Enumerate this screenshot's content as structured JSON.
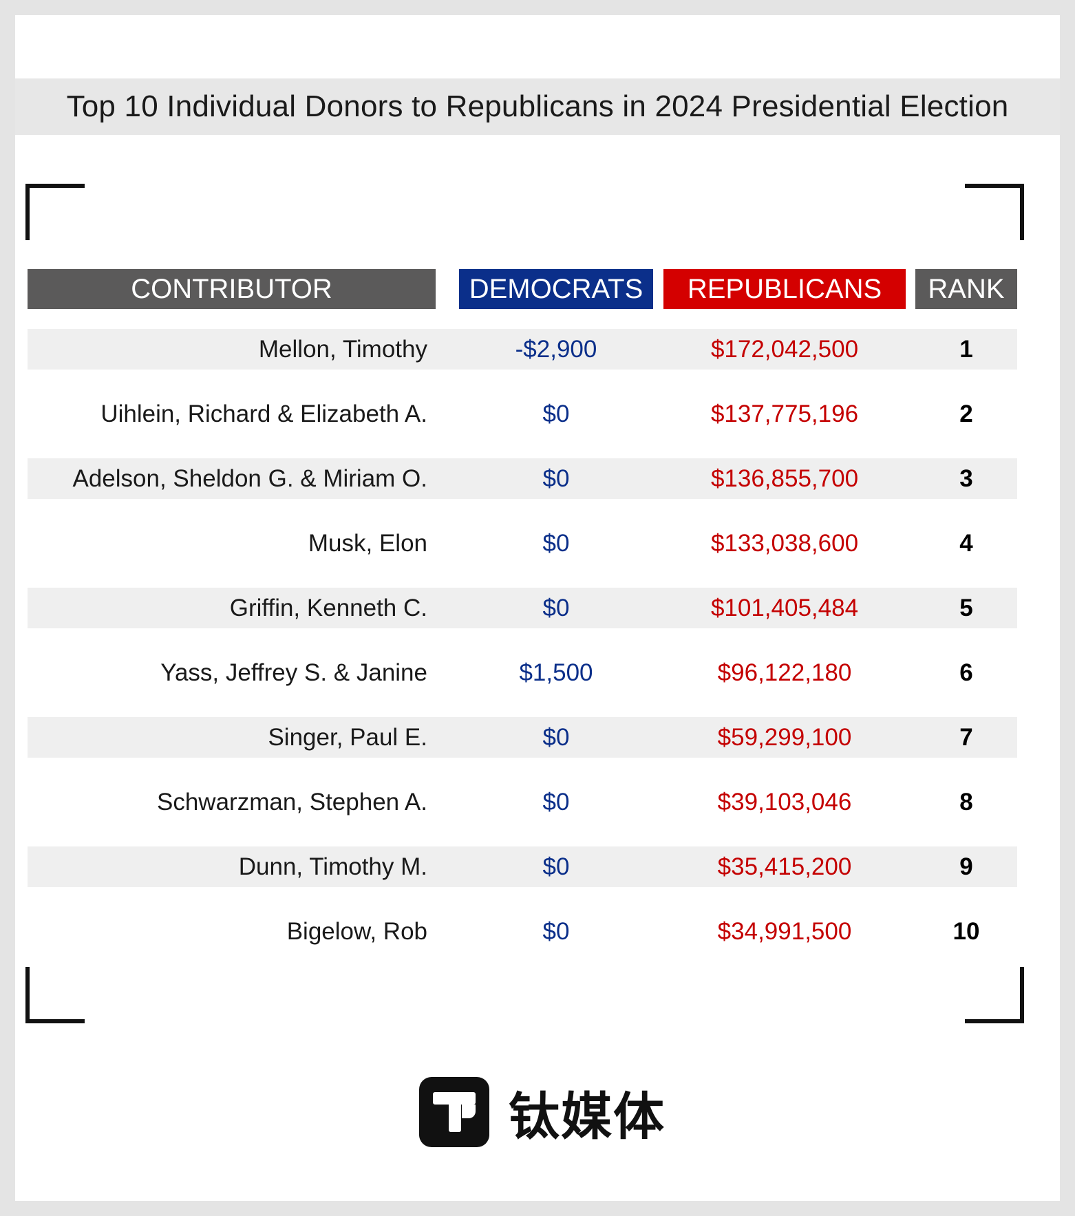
{
  "title": "Top 10 Individual Donors to Republicans in 2024 Presidential Election",
  "headers": {
    "contributor": "CONTRIBUTOR",
    "democrats": "DEMOCRATS",
    "republicans": "REPUBLICANS",
    "rank": "RANK"
  },
  "rows": [
    {
      "contributor": "Mellon, Timothy",
      "democrats": "-$2,900",
      "republicans": "$172,042,500",
      "rank": "1"
    },
    {
      "contributor": "Uihlein, Richard & Elizabeth A.",
      "democrats": "$0",
      "republicans": "$137,775,196",
      "rank": "2"
    },
    {
      "contributor": "Adelson, Sheldon G. & Miriam O.",
      "democrats": "$0",
      "republicans": "$136,855,700",
      "rank": "3"
    },
    {
      "contributor": "Musk, Elon",
      "democrats": "$0",
      "republicans": "$133,038,600",
      "rank": "4"
    },
    {
      "contributor": "Griffin, Kenneth C.",
      "democrats": "$0",
      "republicans": "$101,405,484",
      "rank": "5"
    },
    {
      "contributor": "Yass, Jeffrey S. & Janine",
      "democrats": "$1,500",
      "republicans": "$96,122,180",
      "rank": "6"
    },
    {
      "contributor": "Singer, Paul E.",
      "democrats": "$0",
      "republicans": "$59,299,100",
      "rank": "7"
    },
    {
      "contributor": "Schwarzman, Stephen A.",
      "democrats": "$0",
      "republicans": "$39,103,046",
      "rank": "8"
    },
    {
      "contributor": "Dunn, Timothy M.",
      "democrats": "$0",
      "republicans": "$35,415,200",
      "rank": "9"
    },
    {
      "contributor": "Bigelow, Rob",
      "democrats": "$0",
      "republicans": "$34,991,500",
      "rank": "10"
    }
  ],
  "logo": {
    "icon": "t-logo-icon",
    "text": "钛媒体"
  },
  "colors": {
    "democrats": "#0b2f8a",
    "republicans": "#d40000",
    "header_gray": "#5b5a5a",
    "row_shade": "#efefef"
  }
}
